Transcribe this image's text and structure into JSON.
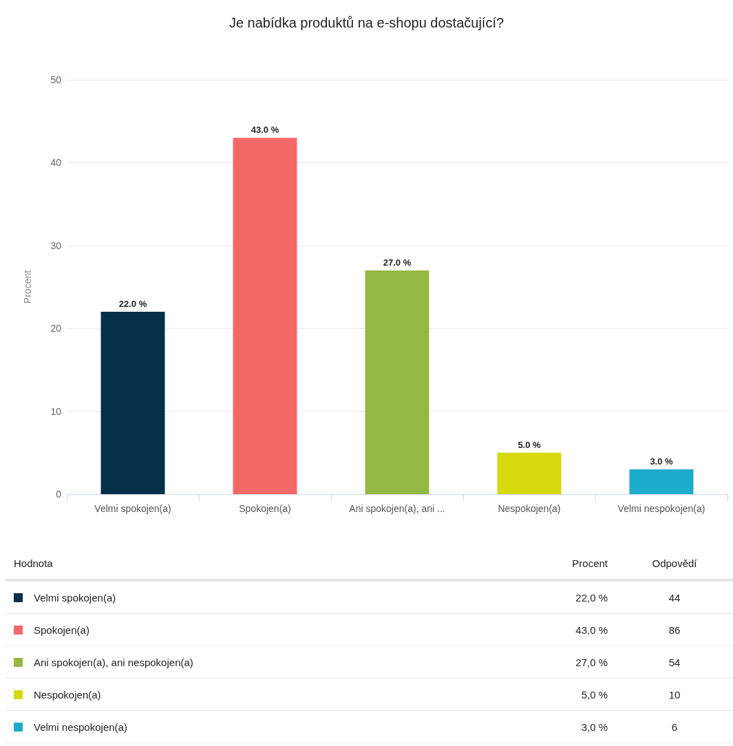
{
  "chart_data": [
    {
      "type": "bar",
      "title": "Je nabídka produktů na e-shopu dostačující?",
      "ylabel": "Procent",
      "categories": [
        "Velmi spokojen(a)",
        "Spokojen(a)",
        "Ani spokojen(a), ani ...",
        "Nespokojen(a)",
        "Velmi nespokojen(a)"
      ],
      "values": [
        22,
        43,
        27,
        5,
        3
      ],
      "colors": [
        "#06304a",
        "#f56868",
        "#93b843",
        "#d6d90e",
        "#1cadcc"
      ],
      "value_labels": [
        "22.0 %",
        "43.0 %",
        "27.0 %",
        "5.0 %",
        "3.0 %"
      ],
      "ylim": [
        0,
        50
      ],
      "yticks": [
        0,
        10,
        20,
        30,
        40,
        50
      ],
      "grid": "y"
    },
    {
      "type": "other",
      "xlabel": "Hodnota",
      "data_labels": true,
      "categories": [
        "Velmi spokojen(a)",
        "Spokojen(a)",
        "Ani spokojen(a), ani nespokojen(a)",
        "Nespokojen(a)",
        "Velmi nespokojen(a)"
      ],
      "colors": [
        "#06304a",
        "#f56868",
        "#93b843",
        "#d6d90e",
        "#1cadcc"
      ],
      "series": [
        {
          "name": "Procent",
          "values": [
            22,
            43,
            27,
            5,
            3
          ],
          "value_labels": [
            "22,0 %",
            "43,0 %",
            "27,0 %",
            "5,0 %",
            "3,0 %"
          ]
        },
        {
          "name": "Odpovědí",
          "values": [
            44,
            86,
            54,
            10,
            6
          ]
        }
      ]
    }
  ]
}
